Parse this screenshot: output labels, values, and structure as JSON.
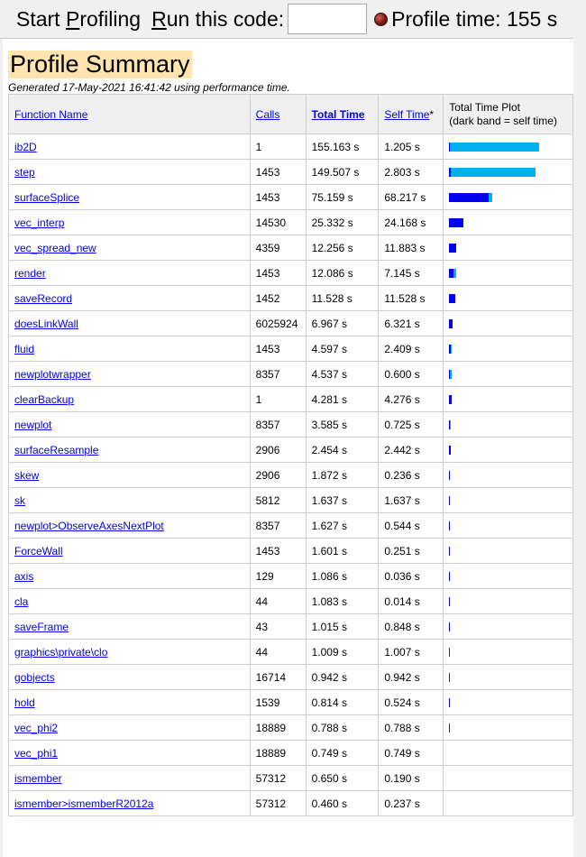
{
  "toolbar": {
    "start_profiling": "Start Profiling",
    "start_profiling_mnemonic": "P",
    "run_code_label": "Run this code:",
    "run_code_mnemonic": "R",
    "run_code_value": "",
    "profile_time_label": "Profile time: 155 s"
  },
  "summary": {
    "title": "Profile Summary",
    "generated": "Generated 17-May-2021 16:41:42 using performance time."
  },
  "table": {
    "headers": {
      "function_name": "Function Name",
      "calls": "Calls",
      "total_time": "Total Time",
      "self_time": "Self Time",
      "self_time_mark": "*",
      "plot_line1": "Total Time Plot",
      "plot_line2": "(dark band = self time)"
    },
    "max_total_time": 155.163,
    "colors": {
      "self_band": "#0000ee",
      "total_band": "#00b0f0"
    },
    "rows": [
      {
        "name": "ib2D",
        "calls": "1",
        "total": "155.163 s",
        "self": "1.205 s",
        "total_val": 155.163,
        "self_val": 1.205
      },
      {
        "name": "step",
        "calls": "1453",
        "total": "149.507 s",
        "self": "2.803 s",
        "total_val": 149.507,
        "self_val": 2.803
      },
      {
        "name": "surfaceSplice",
        "calls": "1453",
        "total": "75.159 s",
        "self": "68.217 s",
        "total_val": 75.159,
        "self_val": 68.217
      },
      {
        "name": "vec_interp",
        "calls": "14530",
        "total": "25.332 s",
        "self": "24.168 s",
        "total_val": 25.332,
        "self_val": 24.168
      },
      {
        "name": "vec_spread_new",
        "calls": "4359",
        "total": "12.256 s",
        "self": "11.883 s",
        "total_val": 12.256,
        "self_val": 11.883
      },
      {
        "name": "render",
        "calls": "1453",
        "total": "12.086 s",
        "self": "7.145 s",
        "total_val": 12.086,
        "self_val": 7.145
      },
      {
        "name": "saveRecord",
        "calls": "1452",
        "total": "11.528 s",
        "self": "11.528 s",
        "total_val": 11.528,
        "self_val": 11.528
      },
      {
        "name": "doesLinkWall",
        "calls": "6025924",
        "total": "6.967 s",
        "self": "6.321 s",
        "total_val": 6.967,
        "self_val": 6.321
      },
      {
        "name": "fluid",
        "calls": "1453",
        "total": "4.597 s",
        "self": "2.409 s",
        "total_val": 4.597,
        "self_val": 2.409
      },
      {
        "name": "newplotwrapper",
        "calls": "8357",
        "total": "4.537 s",
        "self": "0.600 s",
        "total_val": 4.537,
        "self_val": 0.6
      },
      {
        "name": "clearBackup",
        "calls": "1",
        "total": "4.281 s",
        "self": "4.276 s",
        "total_val": 4.281,
        "self_val": 4.276
      },
      {
        "name": "newplot",
        "calls": "8357",
        "total": "3.585 s",
        "self": "0.725 s",
        "total_val": 3.585,
        "self_val": 0.725
      },
      {
        "name": "surfaceResample",
        "calls": "2906",
        "total": "2.454 s",
        "self": "2.442 s",
        "total_val": 2.454,
        "self_val": 2.442
      },
      {
        "name": "skew",
        "calls": "2906",
        "total": "1.872 s",
        "self": "0.236 s",
        "total_val": 1.872,
        "self_val": 0.236
      },
      {
        "name": "sk",
        "calls": "5812",
        "total": "1.637 s",
        "self": "1.637 s",
        "total_val": 1.637,
        "self_val": 1.637
      },
      {
        "name": "newplot>ObserveAxesNextPlot",
        "calls": "8357",
        "total": "1.627 s",
        "self": "0.544 s",
        "total_val": 1.627,
        "self_val": 0.544
      },
      {
        "name": "ForceWall",
        "calls": "1453",
        "total": "1.601 s",
        "self": "0.251 s",
        "total_val": 1.601,
        "self_val": 0.251
      },
      {
        "name": "axis",
        "calls": "129",
        "total": "1.086 s",
        "self": "0.036 s",
        "total_val": 1.086,
        "self_val": 0.036
      },
      {
        "name": "cla",
        "calls": "44",
        "total": "1.083 s",
        "self": "0.014 s",
        "total_val": 1.083,
        "self_val": 0.014
      },
      {
        "name": "saveFrame",
        "calls": "43",
        "total": "1.015 s",
        "self": "0.848 s",
        "total_val": 1.015,
        "self_val": 0.848
      },
      {
        "name": "graphics\\private\\clo",
        "calls": "44",
        "total": "1.009 s",
        "self": "1.007 s",
        "total_val": 1.009,
        "self_val": 1.007
      },
      {
        "name": "gobjects",
        "calls": "16714",
        "total": "0.942 s",
        "self": "0.942 s",
        "total_val": 0.942,
        "self_val": 0.942
      },
      {
        "name": "hold",
        "calls": "1539",
        "total": "0.814 s",
        "self": "0.524 s",
        "total_val": 0.814,
        "self_val": 0.524
      },
      {
        "name": "vec_phi2",
        "calls": "18889",
        "total": "0.788 s",
        "self": "0.788 s",
        "total_val": 0.788,
        "self_val": 0.788
      },
      {
        "name": "vec_phi1",
        "calls": "18889",
        "total": "0.749 s",
        "self": "0.749 s",
        "total_val": 0.749,
        "self_val": 0.749
      },
      {
        "name": "ismember",
        "calls": "57312",
        "total": "0.650 s",
        "self": "0.190 s",
        "total_val": 0.65,
        "self_val": 0.19
      },
      {
        "name": "ismember>ismemberR2012a",
        "calls": "57312",
        "total": "0.460 s",
        "self": "0.237 s",
        "total_val": 0.46,
        "self_val": 0.237
      }
    ]
  }
}
